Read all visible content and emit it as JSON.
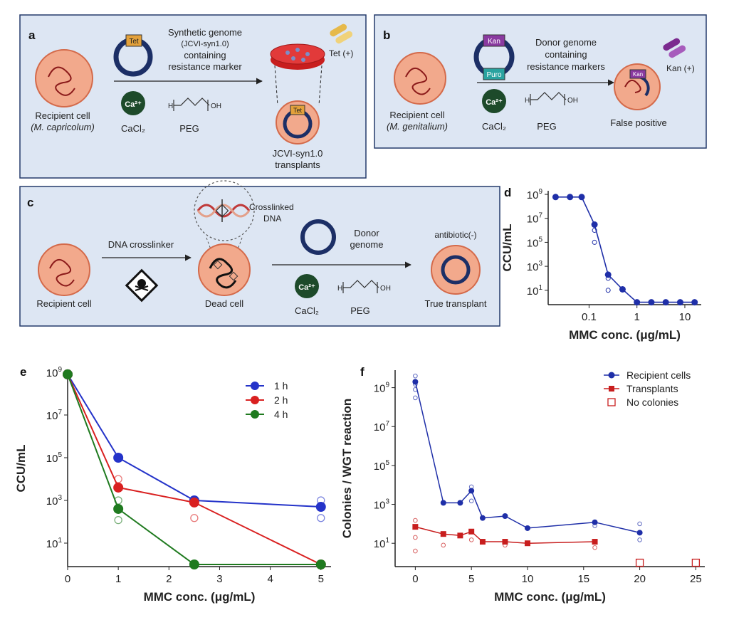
{
  "panels": {
    "a": {
      "label": "a",
      "arrow_text": [
        "Synthetic genome",
        "(JCVI-syn1.0)",
        "containing",
        "resistance marker"
      ],
      "marker": "Tet",
      "ion": "Ca²⁺",
      "cacl2": "CaCl₂",
      "peg": "PEG",
      "recipient": [
        "Recipient cell",
        "(M. capricolum)"
      ],
      "antibiotic": "Tet (+)",
      "result": [
        "JCVI-syn1.0",
        "transplants"
      ]
    },
    "b": {
      "label": "b",
      "markers": [
        "Kan",
        "Puro"
      ],
      "arrow_text": [
        "Donor genome",
        "containing",
        "resistance markers"
      ],
      "ion": "Ca²⁺",
      "cacl2": "CaCl₂",
      "peg": "PEG",
      "recipient": [
        "Recipient cell",
        "(M. genitalium)"
      ],
      "antibiotic": "Kan (+)",
      "result": "False positive"
    },
    "c": {
      "label": "c",
      "crosslinker": "DNA crosslinker",
      "crosslinked": [
        "Crosslinked",
        "DNA"
      ],
      "donor": [
        "Donor",
        "genome"
      ],
      "antibiotic": "antibiotic(-)",
      "ion": "Ca²⁺",
      "cacl2": "CaCl₂",
      "peg": "PEG",
      "recipient": "Recipient cell",
      "dead": "Dead cell",
      "result": "True transplant"
    },
    "d": {
      "label": "d"
    },
    "e": {
      "label": "e"
    },
    "f": {
      "label": "f"
    }
  },
  "chart_data": [
    {
      "id": "d",
      "type": "line",
      "xscale": "log",
      "yscale": "log",
      "xlabel": "MMC conc. (μg/mL)",
      "ylabel": "CCU/mL",
      "xticks": [
        "0.1",
        "1",
        "10"
      ],
      "yticks": [
        "10^1",
        "10^3",
        "10^5",
        "10^7",
        "10^9"
      ],
      "series": [
        {
          "name": "CCU",
          "color": "#1f2fa8",
          "x": [
            0.02,
            0.04,
            0.07,
            0.13,
            0.25,
            0.5,
            1,
            2,
            4,
            8,
            16
          ],
          "y": [
            600000000,
            600000000,
            600000000,
            3000000,
            200,
            12,
            1,
            1,
            1,
            1,
            1
          ]
        }
      ],
      "replicates": {
        "x": [
          0.13,
          0.13,
          0.25,
          0.25
        ],
        "y": [
          1000000,
          100000,
          10,
          100
        ]
      }
    },
    {
      "id": "e",
      "type": "line",
      "yscale": "log",
      "xlabel": "MMC conc. (μg/mL)",
      "ylabel": "CCU/mL",
      "xticks": [
        "0",
        "1",
        "2",
        "3",
        "4",
        "5"
      ],
      "yticks": [
        "10^1",
        "10^3",
        "10^5",
        "10^7",
        "10^9"
      ],
      "legend": [
        "1 h",
        "2 h",
        "4 h"
      ],
      "series": [
        {
          "name": "1 h",
          "color": "#2433c9",
          "x": [
            0,
            1,
            2.5,
            5
          ],
          "y": [
            800000000,
            100000,
            1000,
            500
          ]
        },
        {
          "name": "2 h",
          "color": "#d92020",
          "x": [
            0,
            1,
            2.5,
            5
          ],
          "y": [
            800000000,
            4000,
            800,
            1
          ]
        },
        {
          "name": "4 h",
          "color": "#1f7a1f",
          "x": [
            0,
            1,
            2.5,
            5
          ],
          "y": [
            800000000,
            400,
            1,
            1
          ]
        }
      ],
      "replicates": [
        {
          "series": "1 h",
          "x": [
            5,
            5
          ],
          "y": [
            1000,
            150
          ]
        },
        {
          "series": "2 h",
          "x": [
            1,
            2.5
          ],
          "y": [
            10000,
            150
          ]
        },
        {
          "series": "4 h",
          "x": [
            1,
            1
          ],
          "y": [
            1000,
            120
          ]
        }
      ]
    },
    {
      "id": "f",
      "type": "line",
      "yscale": "log",
      "xlabel": "MMC conc. (μg/mL)",
      "ylabel": "Colonies / WGT reaction",
      "xticks": [
        "0",
        "5",
        "10",
        "15",
        "20",
        "25"
      ],
      "yticks": [
        "10^1",
        "10^3",
        "10^5",
        "10^7",
        "10^9"
      ],
      "legend": [
        "Recipient cells",
        "Transplants",
        "No colonies"
      ],
      "series": [
        {
          "name": "Recipient cells",
          "color": "#1f2fa8",
          "x": [
            0,
            2.5,
            4,
            5,
            6,
            8,
            10,
            16,
            20
          ],
          "y": [
            2000000000,
            1200,
            1200,
            5000,
            200,
            250,
            60,
            120,
            35
          ]
        },
        {
          "name": "Transplants",
          "color": "#c81e1e",
          "x": [
            0,
            2.5,
            4,
            5,
            6,
            8,
            10,
            16
          ],
          "y": [
            70,
            30,
            25,
            40,
            12,
            12,
            10,
            12
          ]
        }
      ],
      "no_colonies": {
        "x": [
          20,
          25
        ],
        "y": [
          1,
          1
        ]
      },
      "replicates_recipient": {
        "x": [
          0,
          0,
          0,
          0,
          5,
          5,
          16,
          20,
          20
        ],
        "y": [
          4000000000,
          800000000,
          300000000,
          1500000000,
          8000,
          1500,
          80,
          100,
          15
        ]
      },
      "replicates_transplant": {
        "x": [
          0,
          0,
          0,
          2.5,
          5,
          8,
          16
        ],
        "y": [
          150,
          20,
          4,
          8,
          15,
          8,
          6
        ]
      }
    }
  ]
}
